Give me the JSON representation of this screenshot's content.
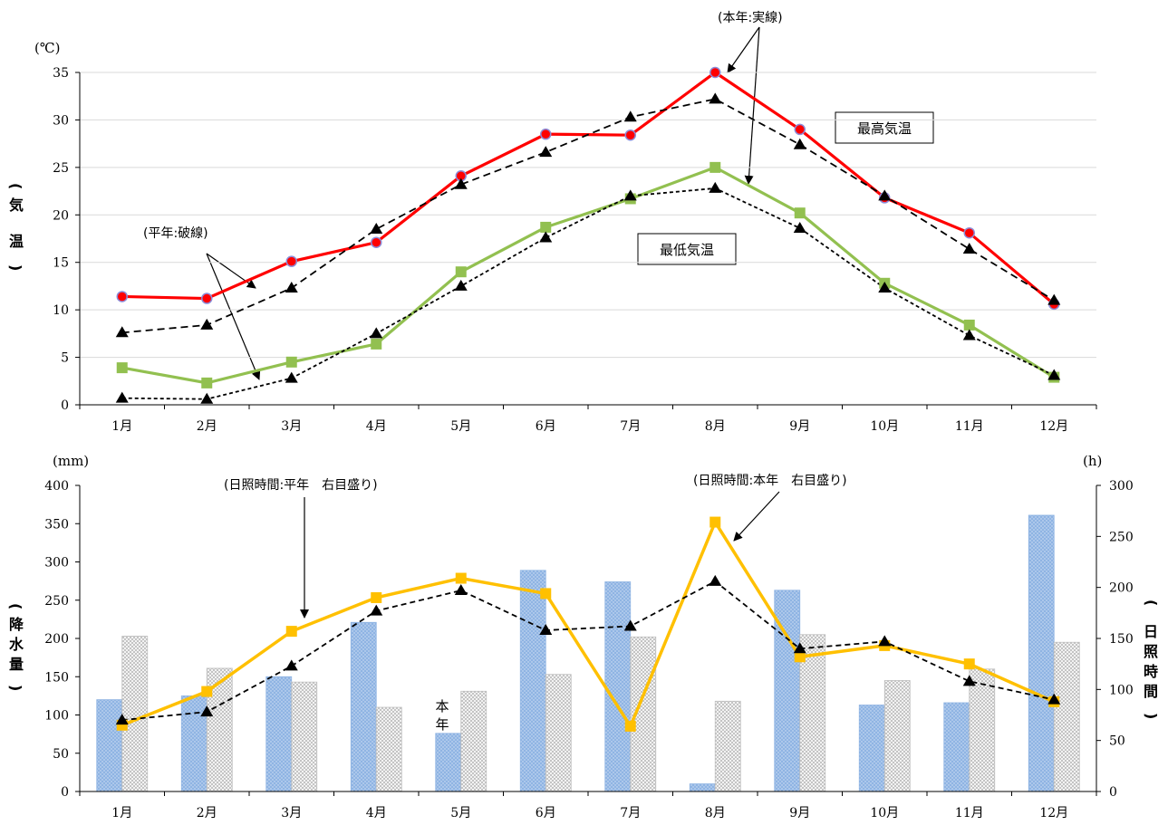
{
  "chart_data": [
    {
      "type": "line",
      "categories": [
        "1月",
        "2月",
        "3月",
        "4月",
        "5月",
        "6月",
        "7月",
        "8月",
        "9月",
        "10月",
        "11月",
        "12月"
      ],
      "unit": "(℃)",
      "ylabel": [
        "気",
        "温",
        "(",
        ")"
      ],
      "ylim": [
        0,
        35
      ],
      "yticks": [
        0,
        5,
        10,
        15,
        20,
        25,
        30,
        35
      ],
      "grid": true,
      "series": [
        {
          "name": "最高気温 本年",
          "values": [
            11.4,
            11.2,
            15.1,
            17.1,
            24.1,
            28.5,
            28.4,
            35.0,
            29.0,
            21.8,
            18.1,
            10.6
          ],
          "color": "#ff0000",
          "marker": "circle",
          "style": "solid"
        },
        {
          "name": "最高気温 平年",
          "values": [
            7.6,
            8.4,
            12.3,
            18.5,
            23.2,
            26.6,
            30.3,
            32.2,
            27.4,
            22.0,
            16.4,
            11.0
          ],
          "color": "#000000",
          "marker": "triangle",
          "style": "dashed"
        },
        {
          "name": "最低気温 本年",
          "values": [
            3.9,
            2.3,
            4.5,
            6.4,
            14.0,
            18.7,
            21.7,
            25.0,
            20.2,
            12.8,
            8.4,
            2.9
          ],
          "color": "#92c050",
          "marker": "square",
          "style": "solid"
        },
        {
          "name": "最低気温 平年",
          "values": [
            0.7,
            0.6,
            2.8,
            7.5,
            12.5,
            17.6,
            22.0,
            22.8,
            18.6,
            12.3,
            7.3,
            3.1
          ],
          "color": "#000000",
          "marker": "triangle",
          "style": "dotted"
        }
      ],
      "annotations": {
        "actual": "(本年:実線)",
        "normal": "(平年:破線)",
        "max_label": "最高気温",
        "min_label": "最低気温"
      }
    },
    {
      "type": "bar",
      "categories": [
        "1月",
        "2月",
        "3月",
        "4月",
        "5月",
        "6月",
        "7月",
        "8月",
        "9月",
        "10月",
        "11月",
        "12月"
      ],
      "left_unit": "(mm)",
      "right_unit": "(h)",
      "ylabel_left": [
        "(",
        "降",
        "水",
        "量",
        ")"
      ],
      "ylabel_right": [
        "(",
        "日",
        "照",
        "時",
        "間",
        ")"
      ],
      "ylim_left": [
        0,
        400
      ],
      "yticks_left": [
        0,
        50,
        100,
        150,
        200,
        250,
        300,
        350,
        400
      ],
      "ylim_right": [
        0,
        300
      ],
      "yticks_right": [
        0,
        50,
        100,
        150,
        200,
        250,
        300
      ],
      "bar_series": [
        {
          "name": "本年",
          "values": [
            120,
            125,
            150,
            221,
            76,
            289,
            274,
            10,
            263,
            113,
            116,
            361
          ],
          "color": "#8fb4e3"
        },
        {
          "name": "平年",
          "values": [
            203,
            161,
            143,
            110,
            131,
            153,
            202,
            118,
            205,
            145,
            160,
            195
          ],
          "color": "#cccccc"
        }
      ],
      "bar_labels": {
        "this_year": "本年",
        "normal": "平年"
      },
      "line_series": [
        {
          "name": "日照時間 本年",
          "values": [
            65,
            98,
            157,
            190,
            209,
            194,
            64,
            264,
            132,
            143,
            125,
            88
          ],
          "color": "#ffc000",
          "marker": "square",
          "style": "solid"
        },
        {
          "name": "日照時間 平年",
          "values": [
            70,
            78,
            123,
            177,
            197,
            158,
            162,
            206,
            140,
            147,
            108,
            90
          ],
          "color": "#000000",
          "marker": "triangle",
          "style": "dashed"
        }
      ],
      "annotations": {
        "normal": "(日照時間:平年　右目盛り)",
        "actual": "(日照時間:本年　右目盛り)"
      }
    }
  ]
}
